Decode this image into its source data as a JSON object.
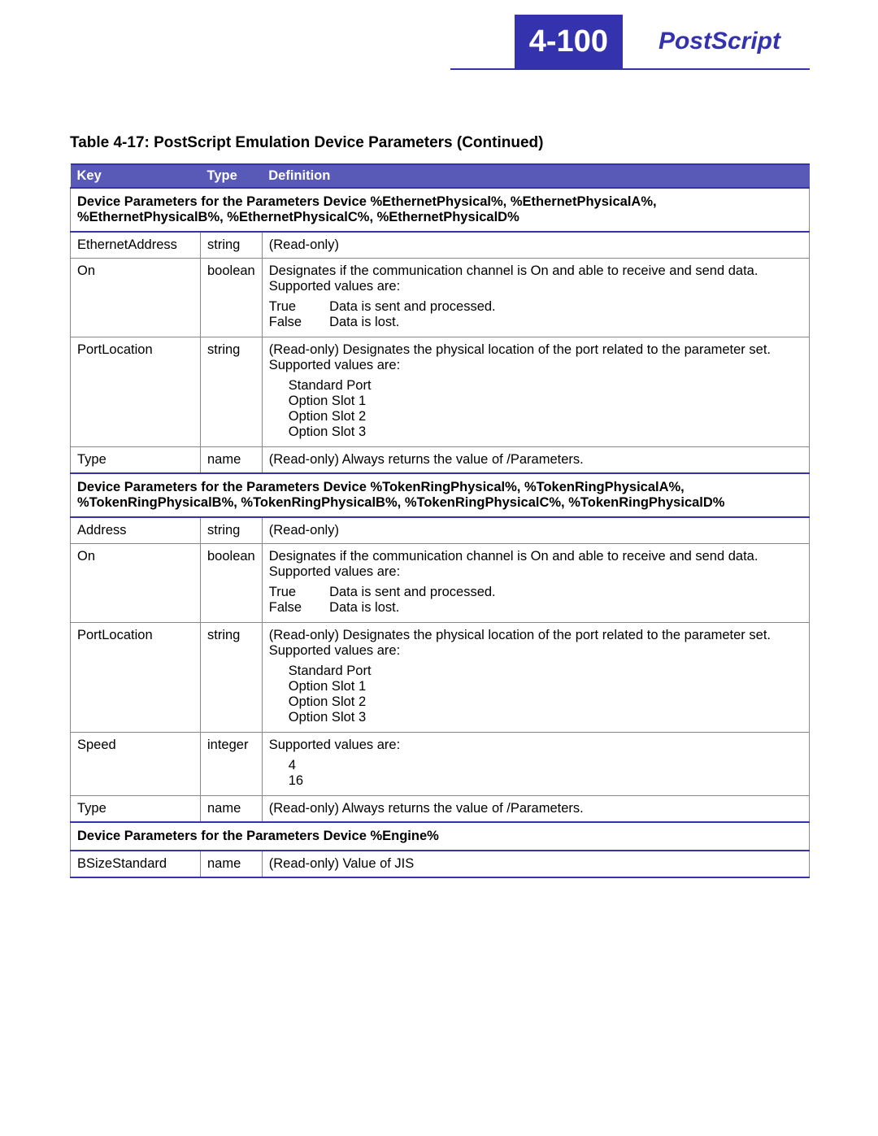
{
  "header": {
    "page_number": "4-100",
    "section_title": "PostScript"
  },
  "colors": {
    "brand_blue": "#3433ad",
    "header_row_bg": "#5959b7",
    "header_row_text": "#ffffff",
    "border_gray": "#888888",
    "page_bg": "#ffffff"
  },
  "table": {
    "caption": "Table 4-17:  PostScript Emulation Device Parameters (Continued)",
    "columns": [
      "Key",
      "Type",
      "Definition"
    ],
    "sections": [
      {
        "heading": "Device Parameters for the Parameters Device %EthernetPhysical%, %EthernetPhysicalA%, %EthernetPhysicalB%, %EthernetPhysicalC%, %EthernetPhysicalD%",
        "rows": [
          {
            "key": "EthernetAddress",
            "type": "string",
            "def": {
              "plain": "(Read-only)"
            }
          },
          {
            "key": "On",
            "type": "boolean",
            "def": {
              "lead": "Designates if the communication channel is On and able to receive and send data. Supported values are:",
              "kv": [
                {
                  "k": "True",
                  "v": "Data is sent and processed."
                },
                {
                  "k": "False",
                  "v": "Data is lost."
                }
              ]
            }
          },
          {
            "key": "PortLocation",
            "type": "string",
            "def": {
              "lead": "(Read-only) Designates the physical location of the port related to the parameter set. Supported values are:",
              "list": [
                "Standard Port",
                "Option Slot 1",
                "Option Slot 2",
                "Option Slot 3"
              ]
            }
          },
          {
            "key": "Type",
            "type": "name",
            "def": {
              "plain": "(Read-only) Always returns the value of /Parameters."
            }
          }
        ]
      },
      {
        "heading": "Device Parameters for the Parameters Device %TokenRingPhysical%, %TokenRingPhysicalA%, %TokenRingPhysicalB%, %TokenRingPhysicalB%, %TokenRingPhysicalC%, %TokenRingPhysicalD%",
        "rows": [
          {
            "key": "Address",
            "type": "string",
            "def": {
              "plain": "(Read-only)"
            }
          },
          {
            "key": "On",
            "type": "boolean",
            "def": {
              "lead": "Designates if the communication channel is On and able to receive and send data. Supported values are:",
              "kv": [
                {
                  "k": "True",
                  "v": "Data is sent and processed."
                },
                {
                  "k": "False",
                  "v": "Data is lost."
                }
              ]
            }
          },
          {
            "key": "PortLocation",
            "type": "string",
            "def": {
              "lead": "(Read-only) Designates the physical location of the port related to the parameter set. Supported values are:",
              "list": [
                "Standard Port",
                "Option Slot 1",
                "Option Slot 2",
                "Option Slot 3"
              ]
            }
          },
          {
            "key": "Speed",
            "type": "integer",
            "def": {
              "lead": "Supported values are:",
              "list": [
                "4",
                "16"
              ]
            }
          },
          {
            "key": "Type",
            "type": "name",
            "def": {
              "plain": "(Read-only) Always returns the value of /Parameters."
            }
          }
        ]
      },
      {
        "heading": "Device Parameters for the Parameters Device %Engine%",
        "rows": [
          {
            "key": "BSizeStandard",
            "type": "name",
            "def": {
              "plain": "(Read-only) Value of JIS"
            }
          }
        ]
      }
    ]
  }
}
